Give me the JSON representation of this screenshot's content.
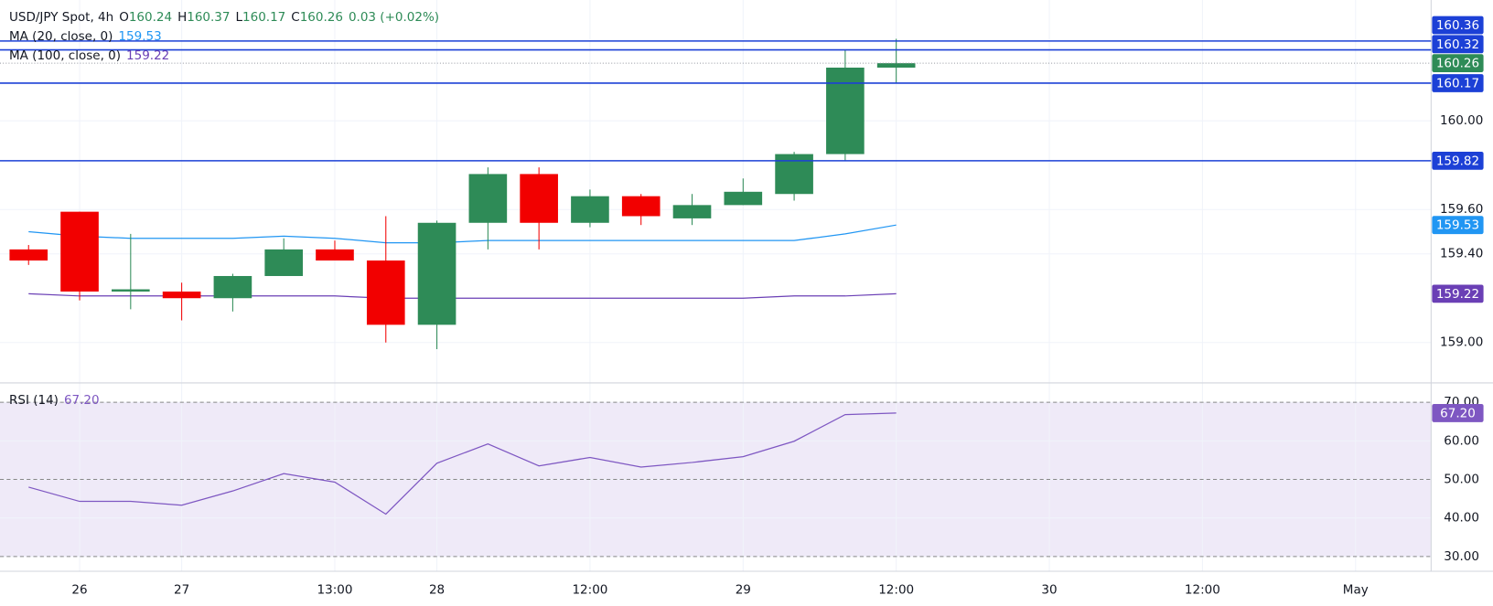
{
  "chart_data": [
    {
      "type": "candlestick",
      "title": "USD/JPY Spot, 4h",
      "fields": [
        {
          "label": "O",
          "value": 160.24
        },
        {
          "label": "H",
          "value": 160.37
        },
        {
          "label": "L",
          "value": 160.17
        },
        {
          "label": "C",
          "value": 160.26
        }
      ],
      "change": "0.03 (+0.02%)",
      "open": [
        159.42,
        159.59,
        159.23,
        159.23,
        159.2,
        159.3,
        159.42,
        159.37,
        159.08,
        159.54,
        159.76,
        159.54,
        159.66,
        159.56,
        159.62,
        159.67,
        159.85,
        160.24
      ],
      "high": [
        159.44,
        159.59,
        159.49,
        159.27,
        159.31,
        159.47,
        159.46,
        159.57,
        159.55,
        159.79,
        159.79,
        159.69,
        159.67,
        159.67,
        159.74,
        159.86,
        160.32,
        160.37
      ],
      "low": [
        159.35,
        159.19,
        159.15,
        159.1,
        159.14,
        159.3,
        159.37,
        159.0,
        158.97,
        159.42,
        159.42,
        159.52,
        159.53,
        159.53,
        159.62,
        159.64,
        159.82,
        160.17
      ],
      "close": [
        159.37,
        159.23,
        159.24,
        159.2,
        159.3,
        159.42,
        159.37,
        159.08,
        159.54,
        159.76,
        159.54,
        159.66,
        159.57,
        159.62,
        159.68,
        159.85,
        160.24,
        160.26
      ],
      "up_color": "#2e8b57",
      "down_color": "#f20000",
      "moving_averages": [
        {
          "name": "MA (20, close, 0)",
          "color": "#2196f3",
          "last": 159.53,
          "values": [
            159.5,
            159.48,
            159.47,
            159.47,
            159.47,
            159.48,
            159.47,
            159.45,
            159.45,
            159.46,
            159.46,
            159.46,
            159.46,
            159.46,
            159.46,
            159.46,
            159.49,
            159.53
          ]
        },
        {
          "name": "MA (100, close, 0)",
          "color": "#6a3fb5",
          "last": 159.22,
          "values": [
            159.22,
            159.21,
            159.21,
            159.21,
            159.21,
            159.21,
            159.21,
            159.2,
            159.2,
            159.2,
            159.2,
            159.2,
            159.2,
            159.2,
            159.2,
            159.21,
            159.21,
            159.22
          ]
        }
      ],
      "levels": [
        {
          "value": 160.36,
          "label": "160.36"
        },
        {
          "value": 160.32,
          "label": "160.32"
        },
        {
          "value": 160.17,
          "label": "160.17"
        },
        {
          "value": 159.82,
          "label": "159.82"
        }
      ],
      "level_color": "#1c40d6",
      "last_price": {
        "value": 160.26,
        "label": "160.26"
      },
      "ylim": [
        158.82,
        160.545
      ],
      "yticks": [
        {
          "value": 160,
          "label": "160.00"
        },
        {
          "value": 159.6,
          "label": "159.60"
        },
        {
          "value": 159.4,
          "label": "159.40"
        },
        {
          "value": 159,
          "label": "159.00"
        }
      ],
      "xlim": [
        -0.56,
        27.48
      ],
      "xticks": [
        {
          "value": 1,
          "label": "26"
        },
        {
          "value": 3,
          "label": "27"
        },
        {
          "value": 6,
          "label": "13:00"
        },
        {
          "value": 8,
          "label": "28"
        },
        {
          "value": 11,
          "label": "12:00"
        },
        {
          "value": 14,
          "label": "29"
        },
        {
          "value": 17,
          "label": "12:00"
        },
        {
          "value": 20,
          "label": "30"
        },
        {
          "value": 23,
          "label": "12:00"
        },
        {
          "value": 26,
          "label": "May"
        }
      ],
      "grid": true
    },
    {
      "type": "line",
      "title": "RSI (14)",
      "color": "#7e57c2",
      "band_color": "#efeaf8",
      "values": [
        48.0,
        44.3,
        44.3,
        43.3,
        47.0,
        51.5,
        49.3,
        41.0,
        54.2,
        59.2,
        53.5,
        55.7,
        53.2,
        54.4,
        55.9,
        59.9,
        66.8,
        67.2
      ],
      "last": {
        "value": 67.2,
        "label": "67.20"
      },
      "levels": [
        70,
        50,
        30
      ],
      "ylim": [
        26.3,
        74.9
      ],
      "yticks": [
        {
          "value": 70,
          "label": "70.00"
        },
        {
          "value": 60,
          "label": "60.00"
        },
        {
          "value": 50,
          "label": "50.00"
        },
        {
          "value": 40,
          "label": "40.00"
        },
        {
          "value": 30,
          "label": "30.00"
        }
      ]
    }
  ]
}
